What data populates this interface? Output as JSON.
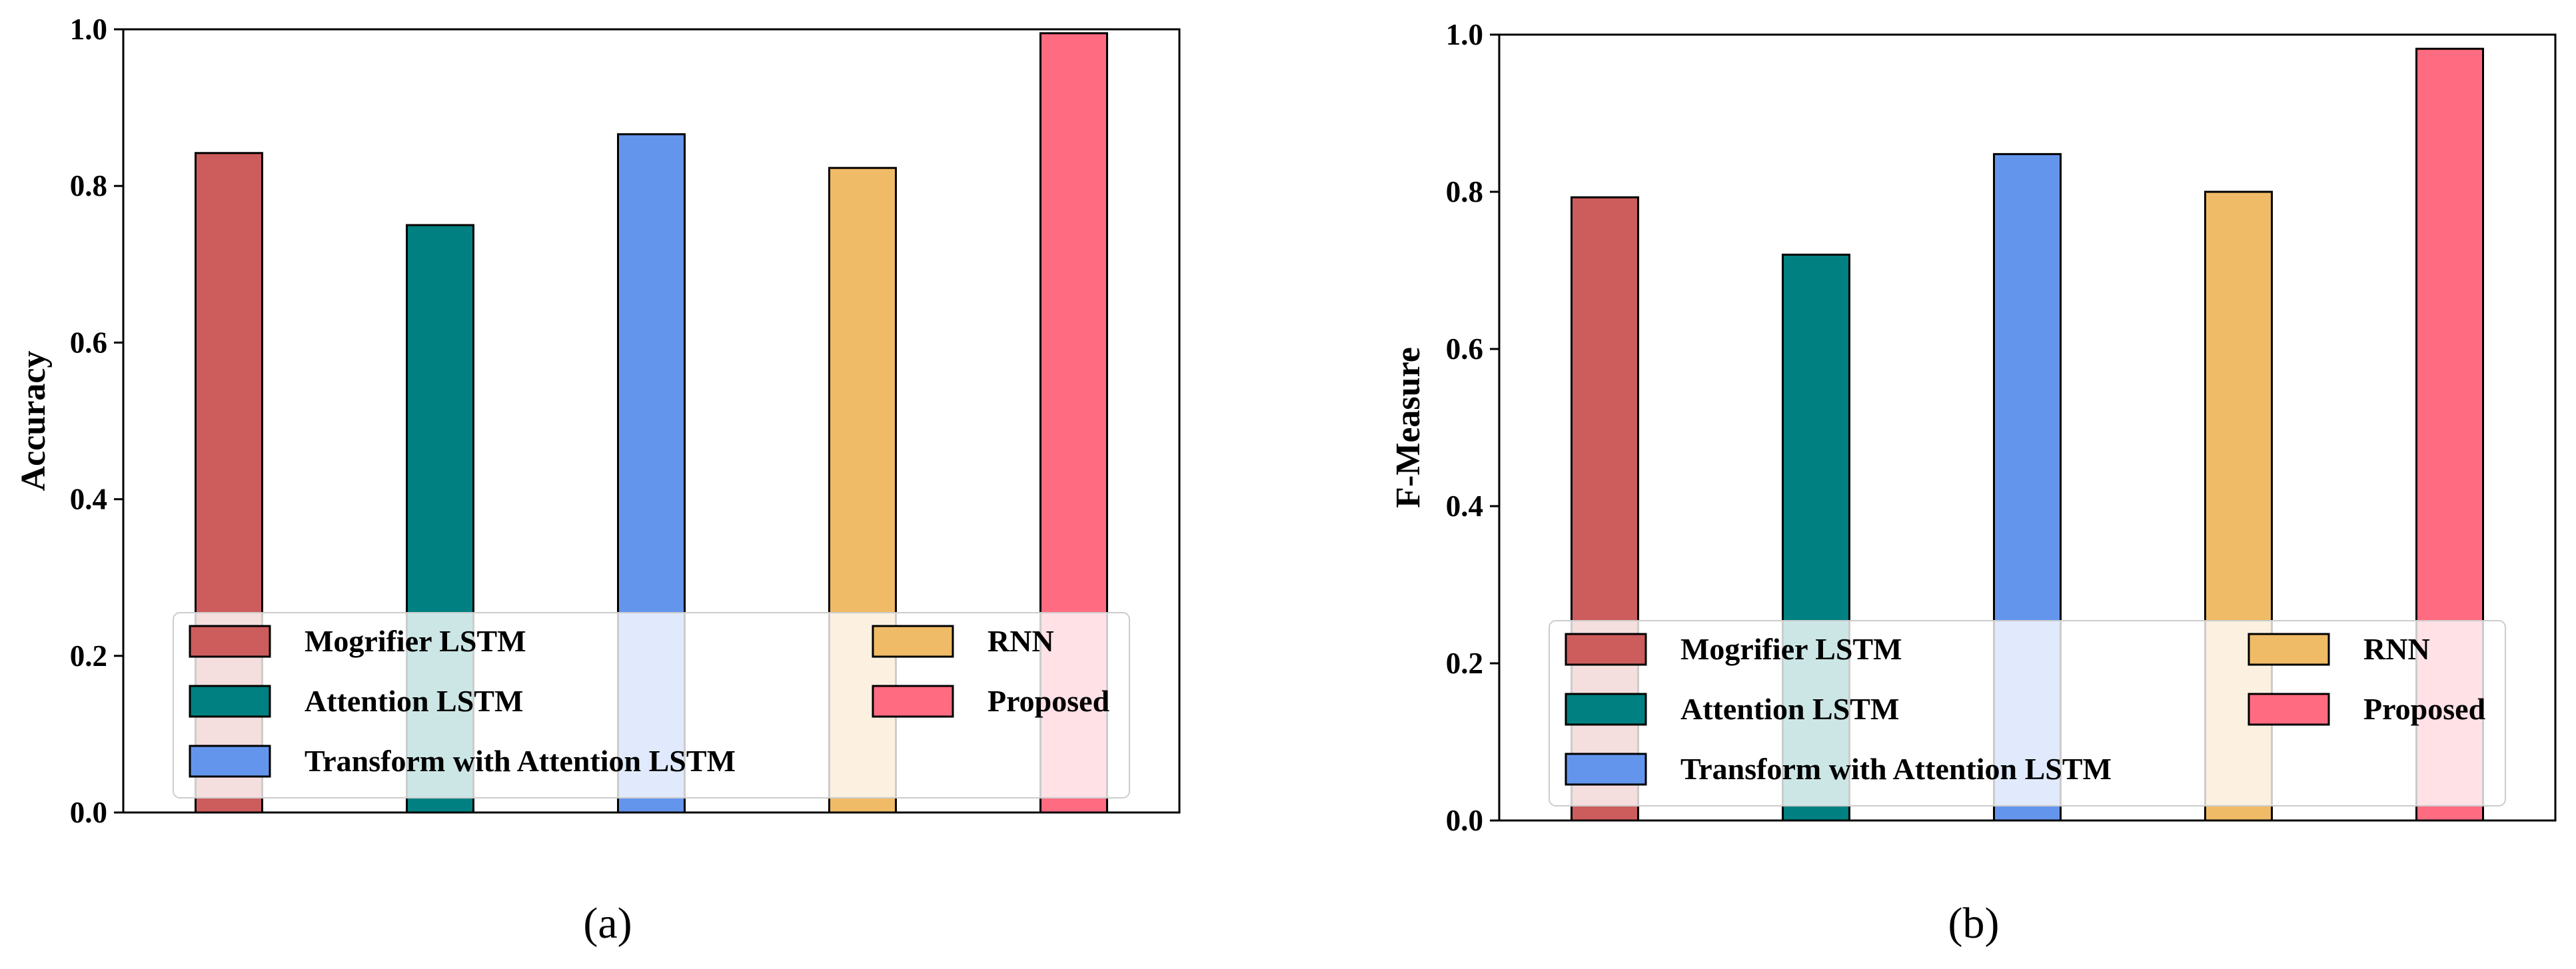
{
  "chart_data": [
    {
      "type": "bar",
      "panel_label": "(a)",
      "title": "",
      "xlabel": "",
      "ylabel": "Accuracy",
      "ylim": [
        0,
        1.0
      ],
      "yticks": [
        "0.0",
        "0.2",
        "0.4",
        "0.6",
        "0.8",
        "1.0"
      ],
      "categories": [
        "Mogrifier LSTM",
        "Attention LSTM",
        "Transform with Attention LSTM",
        "RNN",
        "Proposed"
      ],
      "values": [
        0.842,
        0.75,
        0.866,
        0.823,
        0.995
      ],
      "colors": [
        "#cd5c5c",
        "#008080",
        "#6495ed",
        "#f0bb66",
        "#ff6b81"
      ],
      "legend": {
        "placement": "lower-center",
        "columns": 2,
        "entries": [
          "Mogrifier LSTM",
          "Attention LSTM",
          "Transform with Attention LSTM",
          "RNN",
          "Proposed"
        ]
      },
      "grid": false
    },
    {
      "type": "bar",
      "panel_label": "(b)",
      "title": "",
      "xlabel": "",
      "ylabel": "F-Measure",
      "ylim": [
        0,
        1.0
      ],
      "yticks": [
        "0.0",
        "0.2",
        "0.4",
        "0.6",
        "0.8",
        "1.0"
      ],
      "categories": [
        "Mogrifier LSTM",
        "Attention LSTM",
        "Transform with Attention LSTM",
        "RNN",
        "Proposed"
      ],
      "values": [
        0.793,
        0.72,
        0.848,
        0.8,
        0.982
      ],
      "colors": [
        "#cd5c5c",
        "#008080",
        "#6495ed",
        "#f0bb66",
        "#ff6b81"
      ],
      "legend": {
        "placement": "lower-center",
        "columns": 2,
        "entries": [
          "Mogrifier LSTM",
          "Attention LSTM",
          "Transform with Attention LSTM",
          "RNN",
          "Proposed"
        ]
      },
      "grid": false
    }
  ]
}
